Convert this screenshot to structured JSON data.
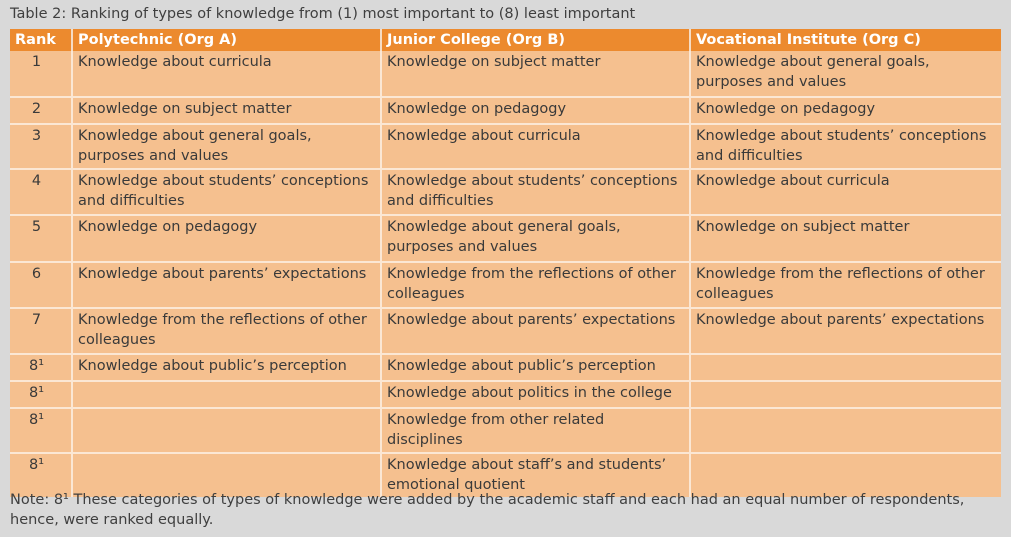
{
  "caption": "Table 2: Ranking of types of knowledge from (1) most important to (8) least important",
  "headers": [
    "Rank",
    "Polytechnic (Org A)",
    "Junior College (Org B)",
    "Vocational Institute (Org C)"
  ],
  "rows": [
    {
      "rank": "1",
      "a": "Knowledge about curricula",
      "b": "Knowledge on subject matter",
      "c": "Knowledge about general goals, purposes and values"
    },
    {
      "rank": "2",
      "a": "Knowledge on subject matter",
      "b": "Knowledge on pedagogy",
      "c": "Knowledge on pedagogy"
    },
    {
      "rank": "3",
      "a": "Knowledge about general goals, purposes and values",
      "b": "Knowledge about curricula",
      "c": "Knowledge about students’ conceptions and difficulties"
    },
    {
      "rank": "4",
      "a": "Knowledge about students’ conceptions and difficulties",
      "b": "Knowledge about students’ conceptions and difficulties",
      "c": "Knowledge about curricula"
    },
    {
      "rank": "5",
      "a": "Knowledge on pedagogy",
      "b": "Knowledge about general goals, purposes and values",
      "c": "Knowledge on subject matter"
    },
    {
      "rank": "6",
      "a": "Knowledge about parents’ expectations",
      "b": "Knowledge from the reflections of other colleagues",
      "c": "Knowledge from the reflections of other colleagues"
    },
    {
      "rank": "7",
      "a": "Knowledge from the reflections of other colleagues",
      "b": "Knowledge about parents’ expectations",
      "c": "Knowledge about parents’ expectations"
    },
    {
      "rank": "8¹",
      "a": "Knowledge about public’s perception",
      "b": "Knowledge about public’s perception",
      "c": ""
    },
    {
      "rank": "8¹",
      "a": "",
      "b": "Knowledge about politics in the college",
      "c": ""
    },
    {
      "rank": "8¹",
      "a": "",
      "b": "Knowledge from other related disciplines",
      "c": ""
    },
    {
      "rank": "8¹",
      "a": "",
      "b": "Knowledge about staff’s and students’ emotional quotient",
      "c": ""
    }
  ],
  "note": "Note: 8¹ These categories of types of knowledge were added by the academic staff and each had an equal number of respondents, hence, were ranked equally.",
  "colors": {
    "header_bg": "#ec8a2e",
    "cell_bg": "#f5c08f",
    "page_bg": "#d9d9d9"
  }
}
